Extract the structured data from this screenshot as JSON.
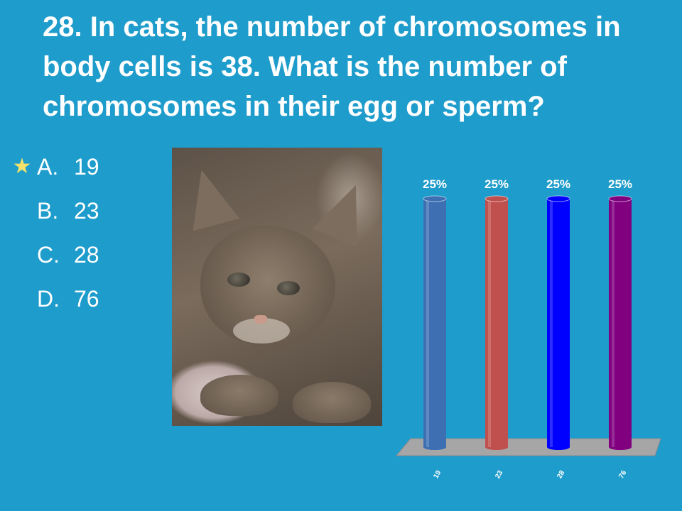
{
  "question": "28.  In cats, the number of chromosomes in body cells is 38.  What is the number of chromosomes in their egg or sperm?",
  "answers": [
    {
      "letter": "A.",
      "value": "19",
      "correct": true,
      "marker": "★"
    },
    {
      "letter": "B.",
      "value": "23",
      "correct": false,
      "marker": ""
    },
    {
      "letter": "C.",
      "value": "28",
      "correct": false,
      "marker": ""
    },
    {
      "letter": "D.",
      "value": "76",
      "correct": false,
      "marker": ""
    }
  ],
  "photo": {
    "subject": "kitten-photo"
  },
  "colors": {
    "background": "#1e9ccb",
    "star": "#f5e26a",
    "bar_19": "#3e6fb3",
    "bar_23": "#c0504d",
    "bar_28": "#0000ff",
    "bar_76": "#800080",
    "floor": "#a6a6a6"
  },
  "chart_data": {
    "type": "bar",
    "categories": [
      "19",
      "23",
      "28",
      "76"
    ],
    "values": [
      25,
      25,
      25,
      25
    ],
    "value_labels": [
      "25%",
      "25%",
      "25%",
      "25%"
    ],
    "colors": [
      "#3e6fb3",
      "#c0504d",
      "#0000ff",
      "#800080"
    ],
    "title": "",
    "xlabel": "",
    "ylabel": "",
    "ylim": [
      0,
      25
    ],
    "grid": false,
    "legend": "none"
  }
}
